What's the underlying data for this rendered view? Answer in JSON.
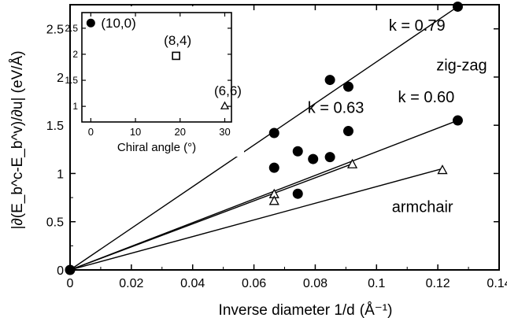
{
  "chart_data": [
    {
      "type": "scatter",
      "title": "",
      "xlabel": "Inverse diameter 1/d",
      "xlabel_unit": "(Å⁻¹)",
      "ylabel": "|∂(E_b^c-E_b^v)/∂u| (eV/Å)",
      "xlim": [
        0,
        0.14
      ],
      "ylim": [
        0,
        2.75
      ],
      "x_ticks": [
        "0",
        "0.02",
        "0.04",
        "0.06",
        "0.08",
        "0.1",
        "0.12",
        "0.14"
      ],
      "y_ticks": [
        "0",
        "0.5",
        "1",
        "1.5",
        "2",
        "2.5"
      ],
      "series": [
        {
          "marker": "filled-circle",
          "points": [
            {
              "x": 0.0,
              "y": 0.0
            },
            {
              "x": 0.0666,
              "y": 1.42
            },
            {
              "x": 0.0848,
              "y": 1.97
            },
            {
              "x": 0.0908,
              "y": 1.9
            },
            {
              "x": 0.1265,
              "y": 2.73
            },
            {
              "x": 0.0666,
              "y": 1.06
            },
            {
              "x": 0.0743,
              "y": 1.23
            },
            {
              "x": 0.0793,
              "y": 1.15
            },
            {
              "x": 0.0848,
              "y": 1.17
            },
            {
              "x": 0.0908,
              "y": 1.44
            },
            {
              "x": 0.1265,
              "y": 1.55
            },
            {
              "x": 0.0743,
              "y": 0.79
            }
          ]
        },
        {
          "marker": "open-triangle",
          "points": [
            {
              "x": 0.0666,
              "y": 0.78
            },
            {
              "x": 0.0666,
              "y": 0.71
            },
            {
              "x": 0.0921,
              "y": 1.09
            },
            {
              "x": 0.1215,
              "y": 1.03
            }
          ]
        }
      ],
      "fit_lines": [
        {
          "slope_label": "k = 0.79",
          "x0": 0,
          "y0": 0,
          "x1": 0.1265,
          "y1": 2.73
        },
        {
          "slope_label": "k = 0.63",
          "x0": 0,
          "y0": 0,
          "x1": 0.0921,
          "y1": 1.1
        },
        {
          "slope_label": "k = 0.60",
          "x0": 0,
          "y0": 0,
          "x1": 0.1265,
          "y1": 1.55
        },
        {
          "slope_label": "",
          "x0": 0,
          "y0": 0,
          "x1": 0.1215,
          "y1": 1.05
        }
      ],
      "annotations": [
        {
          "text": "k = 0.79",
          "x": 0.104,
          "y": 2.48
        },
        {
          "text": "k = 0.63",
          "x": 0.0775,
          "y": 1.63
        },
        {
          "text": "k = 0.60",
          "x": 0.107,
          "y": 1.74
        },
        {
          "text": "zig-zag",
          "x": 0.1195,
          "y": 2.07
        },
        {
          "text": "armchair",
          "x": 0.105,
          "y": 0.6
        }
      ],
      "grid": false
    },
    {
      "type": "scatter",
      "title": "",
      "xlabel": "Chiral angle (°)",
      "ylabel": "",
      "xlim": [
        -2,
        31.5
      ],
      "ylim": [
        0.7,
        2.8
      ],
      "x_ticks": [
        "0",
        "10",
        "20",
        "30"
      ],
      "y_ticks": [
        "1",
        "1.5",
        "2",
        "2.5"
      ],
      "points": [
        {
          "label": "(10,0)",
          "x": 0,
          "y": 2.6,
          "marker": "filled-circle"
        },
        {
          "label": "(8,4)",
          "x": 19.1,
          "y": 1.97,
          "marker": "open-square"
        },
        {
          "label": "(6,6)",
          "x": 30,
          "y": 1.0,
          "marker": "open-triangle"
        }
      ],
      "grid": false
    }
  ]
}
